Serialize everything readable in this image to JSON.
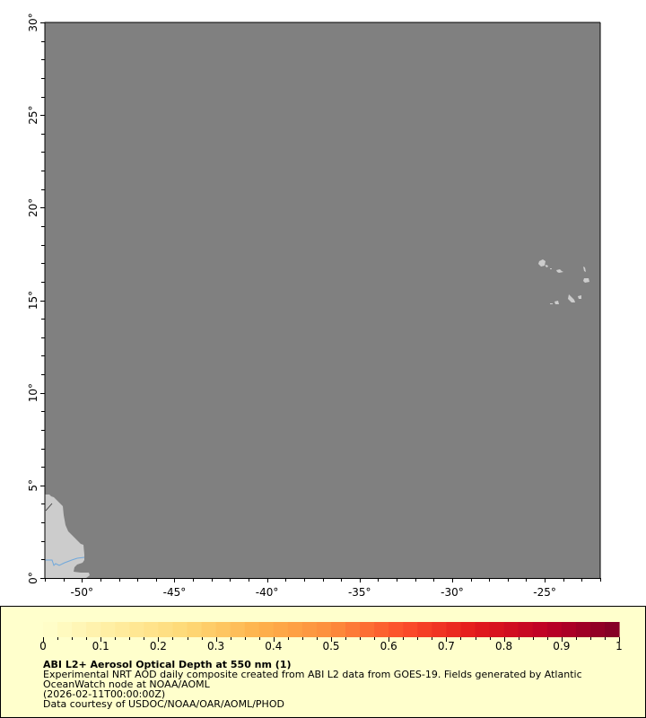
{
  "map": {
    "lon_range": [
      -52,
      -22
    ],
    "lat_range": [
      0,
      30
    ],
    "ocean_color": "#808080",
    "land_color": "#cccccc",
    "river_color": "#6fa8dc",
    "x_ticks": [
      {
        "value": -50,
        "label": "-50°"
      },
      {
        "value": -45,
        "label": "-45°"
      },
      {
        "value": -40,
        "label": "-40°"
      },
      {
        "value": -35,
        "label": "-35°"
      },
      {
        "value": -30,
        "label": "-30°"
      },
      {
        "value": -25,
        "label": "-25°"
      }
    ],
    "y_ticks": [
      {
        "value": 0,
        "label": "0°"
      },
      {
        "value": 5,
        "label": "5°"
      },
      {
        "value": 10,
        "label": "10°"
      },
      {
        "value": 15,
        "label": "15°"
      },
      {
        "value": 20,
        "label": "20°"
      },
      {
        "value": 25,
        "label": "25°"
      },
      {
        "value": 30,
        "label": "30°"
      }
    ]
  },
  "legend": {
    "background": "#ffffcc",
    "colorbar": {
      "min": 0,
      "max": 1,
      "segments": 40,
      "palette": [
        "#ffffcc",
        "#ffeda0",
        "#fed976",
        "#feb24c",
        "#fd8d3c",
        "#fc4e2a",
        "#e31a1c",
        "#bd0026",
        "#800026"
      ],
      "ticks": [
        {
          "value": 0,
          "label": "0"
        },
        {
          "value": 0.1,
          "label": "0.1"
        },
        {
          "value": 0.2,
          "label": "0.2"
        },
        {
          "value": 0.3,
          "label": "0.3"
        },
        {
          "value": 0.4,
          "label": "0.4"
        },
        {
          "value": 0.5,
          "label": "0.5"
        },
        {
          "value": 0.6,
          "label": "0.6"
        },
        {
          "value": 0.7,
          "label": "0.7"
        },
        {
          "value": 0.8,
          "label": "0.8"
        },
        {
          "value": 0.9,
          "label": "0.9"
        },
        {
          "value": 1,
          "label": "1"
        }
      ]
    },
    "title": "ABI L2+ Aerosol Optical Depth at 550 nm (1)",
    "lines": [
      "Experimental NRT AOD daily composite created from ABI L2 data from GOES-19. Fields generated by Atlantic",
      "OceanWatch node at NOAA/AOML",
      "(2026-02-11T00:00:00Z)",
      "Data courtesy of USDOC/NOAA/OAR/AOML/PHOD"
    ]
  }
}
